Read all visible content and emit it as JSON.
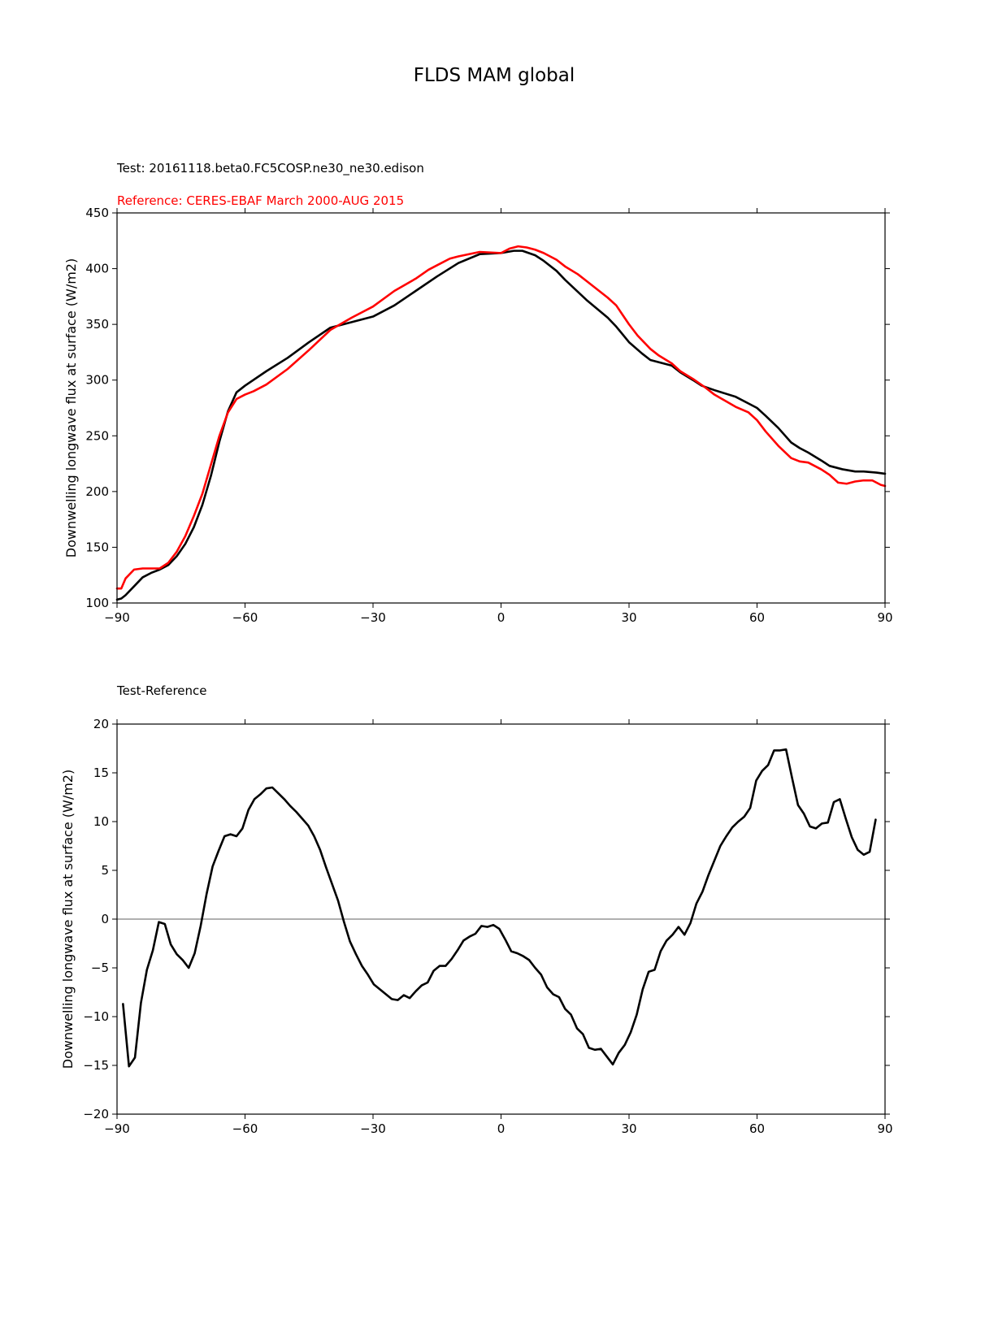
{
  "figure_title": "FLDS MAM global",
  "colors": {
    "test": "#000000",
    "reference": "#ff0000",
    "zero_line": "#808080"
  },
  "chart_data": [
    {
      "type": "line",
      "title": "",
      "subtitle_test": "Test: 20161118.beta0.FC5COSP.ne30_ne30.edison",
      "subtitle_reference": "Reference: CERES-EBAF March 2000-AUG 2015",
      "xlabel": "",
      "ylabel": "Downwelling longwave flux at surface (W/m2)",
      "xlim": [
        -90,
        90
      ],
      "ylim": [
        100,
        450
      ],
      "xticks": [
        -90,
        -60,
        -30,
        0,
        30,
        60,
        90
      ],
      "xtick_labels": [
        "−90",
        "−60",
        "−30",
        "0",
        "30",
        "60",
        "90"
      ],
      "yticks": [
        100,
        150,
        200,
        250,
        300,
        350,
        400,
        450
      ],
      "ytick_labels": [
        "100",
        "150",
        "200",
        "250",
        "300",
        "350",
        "400",
        "450"
      ],
      "grid": false,
      "series": [
        {
          "role": "test",
          "points": [
            [
              -90,
              103
            ],
            [
              -89,
              104
            ],
            [
              -88,
              107
            ],
            [
              -86,
              115
            ],
            [
              -84,
              123
            ],
            [
              -82,
              127
            ],
            [
              -80,
              130
            ],
            [
              -78,
              134
            ],
            [
              -76,
              142
            ],
            [
              -74,
              153
            ],
            [
              -72,
              168
            ],
            [
              -70,
              188
            ],
            [
              -68,
              214
            ],
            [
              -66,
              245
            ],
            [
              -64,
              272
            ],
            [
              -62,
              289
            ],
            [
              -60,
              295
            ],
            [
              -55,
              308
            ],
            [
              -50,
              320
            ],
            [
              -45,
              334
            ],
            [
              -40,
              347
            ],
            [
              -35,
              352
            ],
            [
              -30,
              357
            ],
            [
              -25,
              367
            ],
            [
              -20,
              380
            ],
            [
              -15,
              393
            ],
            [
              -10,
              405
            ],
            [
              -5,
              413
            ],
            [
              0,
              414
            ],
            [
              3,
              416
            ],
            [
              5,
              416
            ],
            [
              8,
              412
            ],
            [
              10,
              407
            ],
            [
              13,
              398
            ],
            [
              15,
              390
            ],
            [
              20,
              372
            ],
            [
              25,
              356
            ],
            [
              27,
              348
            ],
            [
              30,
              334
            ],
            [
              33,
              324
            ],
            [
              35,
              318
            ],
            [
              40,
              313
            ],
            [
              42,
              307
            ],
            [
              45,
              300
            ],
            [
              47,
              295
            ],
            [
              50,
              291
            ],
            [
              55,
              285
            ],
            [
              58,
              279
            ],
            [
              60,
              275
            ],
            [
              62,
              268
            ],
            [
              65,
              257
            ],
            [
              68,
              244
            ],
            [
              70,
              239
            ],
            [
              72,
              235
            ],
            [
              75,
              228
            ],
            [
              77,
              223
            ],
            [
              80,
              220
            ],
            [
              83,
              218
            ],
            [
              85,
              218
            ],
            [
              88,
              217
            ],
            [
              90,
              216
            ]
          ]
        },
        {
          "role": "reference",
          "points": [
            [
              -90,
              113
            ],
            [
              -89,
              113
            ],
            [
              -88,
              122
            ],
            [
              -86,
              130
            ],
            [
              -84,
              131
            ],
            [
              -82,
              131
            ],
            [
              -80,
              131
            ],
            [
              -78,
              136
            ],
            [
              -76,
              146
            ],
            [
              -74,
              160
            ],
            [
              -72,
              178
            ],
            [
              -70,
              198
            ],
            [
              -68,
              224
            ],
            [
              -66,
              250
            ],
            [
              -64,
              271
            ],
            [
              -62,
              283
            ],
            [
              -60,
              287
            ],
            [
              -58,
              290
            ],
            [
              -55,
              296
            ],
            [
              -50,
              310
            ],
            [
              -45,
              327
            ],
            [
              -40,
              345
            ],
            [
              -35,
              356
            ],
            [
              -30,
              366
            ],
            [
              -25,
              380
            ],
            [
              -20,
              391
            ],
            [
              -17,
              399
            ],
            [
              -15,
              403
            ],
            [
              -12,
              409
            ],
            [
              -10,
              411
            ],
            [
              -5,
              415
            ],
            [
              0,
              414
            ],
            [
              2,
              418
            ],
            [
              4,
              420
            ],
            [
              6,
              419
            ],
            [
              8,
              417
            ],
            [
              10,
              414
            ],
            [
              13,
              408
            ],
            [
              15,
              402
            ],
            [
              18,
              395
            ],
            [
              20,
              389
            ],
            [
              23,
              380
            ],
            [
              25,
              374
            ],
            [
              27,
              367
            ],
            [
              30,
              350
            ],
            [
              32,
              340
            ],
            [
              35,
              328
            ],
            [
              37,
              322
            ],
            [
              40,
              315
            ],
            [
              42,
              308
            ],
            [
              45,
              301
            ],
            [
              48,
              293
            ],
            [
              50,
              287
            ],
            [
              55,
              276
            ],
            [
              58,
              271
            ],
            [
              60,
              264
            ],
            [
              62,
              254
            ],
            [
              65,
              241
            ],
            [
              68,
              230
            ],
            [
              70,
              227
            ],
            [
              72,
              226
            ],
            [
              75,
              220
            ],
            [
              77,
              215
            ],
            [
              79,
              208
            ],
            [
              81,
              207
            ],
            [
              83,
              209
            ],
            [
              85,
              210
            ],
            [
              87,
              210
            ],
            [
              89,
              206
            ],
            [
              90,
              205
            ]
          ]
        }
      ]
    },
    {
      "type": "line",
      "title": "",
      "subtitle": "Test-Reference",
      "xlabel": "",
      "ylabel": "Downwelling longwave flux at surface (W/m2)",
      "xlim": [
        -90,
        90
      ],
      "ylim": [
        -20,
        20
      ],
      "xticks": [
        -90,
        -60,
        -30,
        0,
        30,
        60,
        90
      ],
      "xtick_labels": [
        "−90",
        "−60",
        "−30",
        "0",
        "30",
        "60",
        "90"
      ],
      "yticks": [
        -20,
        -15,
        -10,
        -5,
        0,
        5,
        10,
        15,
        20
      ],
      "ytick_labels": [
        "−20",
        "−15",
        "−10",
        "−5",
        "0",
        "5",
        "10",
        "15",
        "20"
      ],
      "zero_line": true,
      "grid": false,
      "series": [
        {
          "role": "test",
          "points": [
            [
              -88.6,
              -8.7
            ],
            [
              -87.2,
              -15.1
            ],
            [
              -85.8,
              -14.2
            ],
            [
              -84.4,
              -8.6
            ],
            [
              -83.0,
              -5.2
            ],
            [
              -81.6,
              -3.2
            ],
            [
              -80.2,
              -0.3
            ],
            [
              -78.8,
              -0.5
            ],
            [
              -77.4,
              -2.6
            ],
            [
              -76.0,
              -3.6
            ],
            [
              -74.6,
              -4.2
            ],
            [
              -73.2,
              -5.0
            ],
            [
              -71.8,
              -3.5
            ],
            [
              -70.4,
              -0.7
            ],
            [
              -69.0,
              2.6
            ],
            [
              -67.6,
              5.4
            ],
            [
              -66.2,
              7.0
            ],
            [
              -64.8,
              8.5
            ],
            [
              -63.4,
              8.7
            ],
            [
              -62.0,
              8.5
            ],
            [
              -60.6,
              9.3
            ],
            [
              -59.2,
              11.2
            ],
            [
              -57.8,
              12.3
            ],
            [
              -56.4,
              12.8
            ],
            [
              -55.0,
              13.4
            ],
            [
              -53.6,
              13.5
            ],
            [
              -52.2,
              12.9
            ],
            [
              -50.8,
              12.3
            ],
            [
              -49.4,
              11.6
            ],
            [
              -48.0,
              11.0
            ],
            [
              -46.6,
              10.3
            ],
            [
              -45.2,
              9.6
            ],
            [
              -43.8,
              8.5
            ],
            [
              -42.4,
              7.1
            ],
            [
              -41.0,
              5.3
            ],
            [
              -39.6,
              3.6
            ],
            [
              -38.2,
              1.9
            ],
            [
              -36.8,
              -0.3
            ],
            [
              -35.4,
              -2.3
            ],
            [
              -34.0,
              -3.6
            ],
            [
              -32.6,
              -4.8
            ],
            [
              -31.2,
              -5.7
            ],
            [
              -29.8,
              -6.7
            ],
            [
              -28.4,
              -7.2
            ],
            [
              -27.0,
              -7.7
            ],
            [
              -25.6,
              -8.2
            ],
            [
              -24.2,
              -8.3
            ],
            [
              -22.8,
              -7.8
            ],
            [
              -21.4,
              -8.1
            ],
            [
              -20.0,
              -7.4
            ],
            [
              -18.6,
              -6.8
            ],
            [
              -17.2,
              -6.5
            ],
            [
              -15.8,
              -5.3
            ],
            [
              -14.4,
              -4.8
            ],
            [
              -13.0,
              -4.8
            ],
            [
              -11.6,
              -4.1
            ],
            [
              -10.2,
              -3.2
            ],
            [
              -8.8,
              -2.2
            ],
            [
              -7.4,
              -1.8
            ],
            [
              -6.0,
              -1.5
            ],
            [
              -4.6,
              -0.7
            ],
            [
              -3.2,
              -0.8
            ],
            [
              -1.8,
              -0.6
            ],
            [
              -0.4,
              -1.0
            ],
            [
              1.0,
              -2.1
            ],
            [
              2.4,
              -3.3
            ],
            [
              3.8,
              -3.5
            ],
            [
              5.2,
              -3.8
            ],
            [
              6.6,
              -4.2
            ],
            [
              8.0,
              -5.0
            ],
            [
              9.4,
              -5.7
            ],
            [
              10.8,
              -7.0
            ],
            [
              12.2,
              -7.7
            ],
            [
              13.6,
              -8.0
            ],
            [
              15.0,
              -9.2
            ],
            [
              16.4,
              -9.8
            ],
            [
              17.8,
              -11.2
            ],
            [
              19.2,
              -11.8
            ],
            [
              20.6,
              -13.2
            ],
            [
              22.0,
              -13.4
            ],
            [
              23.4,
              -13.3
            ],
            [
              24.8,
              -14.1
            ],
            [
              26.2,
              -14.9
            ],
            [
              27.6,
              -13.7
            ],
            [
              29.0,
              -12.9
            ],
            [
              30.4,
              -11.6
            ],
            [
              31.8,
              -9.8
            ],
            [
              33.2,
              -7.2
            ],
            [
              34.6,
              -5.4
            ],
            [
              36.0,
              -5.2
            ],
            [
              37.4,
              -3.3
            ],
            [
              38.8,
              -2.2
            ],
            [
              40.2,
              -1.6
            ],
            [
              41.6,
              -0.8
            ],
            [
              43.0,
              -1.6
            ],
            [
              44.4,
              -0.4
            ],
            [
              45.8,
              1.6
            ],
            [
              47.2,
              2.8
            ],
            [
              48.6,
              4.5
            ],
            [
              50.0,
              6.0
            ],
            [
              51.4,
              7.5
            ],
            [
              52.8,
              8.5
            ],
            [
              54.2,
              9.4
            ],
            [
              55.6,
              10.0
            ],
            [
              57.0,
              10.5
            ],
            [
              58.4,
              11.4
            ],
            [
              59.8,
              14.2
            ],
            [
              61.2,
              15.2
            ],
            [
              62.6,
              15.8
            ],
            [
              64.0,
              17.3
            ],
            [
              65.4,
              17.3
            ],
            [
              66.8,
              17.4
            ],
            [
              68.2,
              14.5
            ],
            [
              69.6,
              11.7
            ],
            [
              71.0,
              10.8
            ],
            [
              72.4,
              9.5
            ],
            [
              73.8,
              9.3
            ],
            [
              75.2,
              9.8
            ],
            [
              76.6,
              9.9
            ],
            [
              78.0,
              12.0
            ],
            [
              79.4,
              12.3
            ],
            [
              80.8,
              10.3
            ],
            [
              82.2,
              8.4
            ],
            [
              83.6,
              7.1
            ],
            [
              85.0,
              6.6
            ],
            [
              86.4,
              6.9
            ],
            [
              87.8,
              10.2
            ]
          ]
        }
      ]
    }
  ]
}
